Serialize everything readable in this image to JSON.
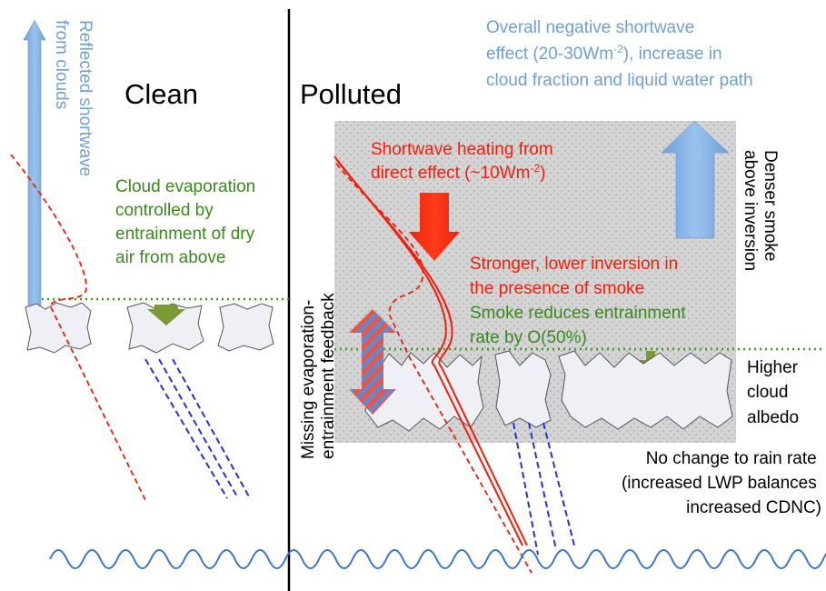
{
  "sections": {
    "clean": "Clean",
    "polluted": "Polluted"
  },
  "annotations": {
    "reflected_shortwave": [
      "Reflected shortwave",
      "from clouds"
    ],
    "cloud_evaporation": [
      "Cloud evaporation",
      "controlled by",
      "entrainment of dry",
      "air from above"
    ],
    "overall_effect": [
      "Overall negative shortwave",
      [
        "effect (20-30Wm",
        "-2",
        "), increase in"
      ],
      "cloud fraction and liquid water path"
    ],
    "shortwave_heating": [
      "Shortwave heating from",
      [
        "direct effect (~10Wm",
        "-2",
        ")"
      ]
    ],
    "stronger_inversion": [
      "Stronger, lower inversion in",
      "the presence of smoke"
    ],
    "smoke_entrainment": [
      "Smoke reduces entrainment",
      "rate by O(50%)"
    ],
    "denser_smoke": [
      "Denser smoke",
      "above inversion"
    ],
    "missing_feedback": [
      "Missing evaporation-",
      "entrainment feedback"
    ],
    "cloud_albedo": [
      "Higher",
      "cloud",
      "albedo"
    ],
    "rain_rate": [
      "No change to rain rate",
      "(increased LWP balances",
      "increased CDNC)"
    ]
  }
}
